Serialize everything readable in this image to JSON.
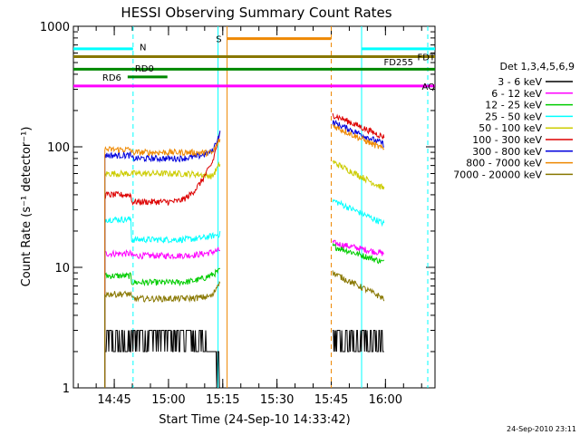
{
  "chart_data": {
    "type": "line",
    "title": "HESSI Observing Summary Count Rates",
    "xlabel": "Start Time (24-Sep-10 14:33:42)",
    "ylabel": "Count Rate (s⁻¹ detector⁻¹)",
    "yscale": "log",
    "ylim": [
      1,
      1000
    ],
    "xlim_minutes": [
      0,
      100
    ],
    "y_ticks": [
      "1",
      "10",
      "100",
      "1000"
    ],
    "x_ticks": [
      {
        "label": "14:45",
        "min": 11.3
      },
      {
        "label": "15:00",
        "min": 26.3
      },
      {
        "label": "15:15",
        "min": 41.3
      },
      {
        "label": "15:30",
        "min": 56.3
      },
      {
        "label": "15:45",
        "min": 71.3
      },
      {
        "label": "16:00",
        "min": 86.3
      }
    ],
    "legend_title": "Det 1,3,4,5,6,9",
    "legend_placement": "right",
    "series": [
      {
        "name": "3 - 6 keV",
        "color": "#000000",
        "seg1": [
          2.3,
          2.7,
          1.7
        ],
        "seg2": [
          2.6,
          2.2
        ]
      },
      {
        "name": "6 - 12 keV",
        "color": "#ff00ff",
        "seg1": [
          13,
          12.5,
          14
        ],
        "seg2": [
          16,
          13
        ]
      },
      {
        "name": "12 - 25 keV",
        "color": "#00cc00",
        "seg1": [
          8.5,
          7.5,
          9.5
        ],
        "seg2": [
          15,
          11
        ]
      },
      {
        "name": "25 - 50 keV",
        "color": "#00ffff",
        "seg1": [
          25,
          17,
          19
        ],
        "seg2": [
          36,
          23
        ]
      },
      {
        "name": "50 - 100 keV",
        "color": "#cccc00",
        "seg1": [
          60,
          60,
          55
        ],
        "seg2": [
          75,
          45
        ]
      },
      {
        "name": "100 - 300 keV",
        "color": "#dd0000",
        "seg1": [
          40,
          35,
          100
        ],
        "seg2": [
          185,
          120
        ]
      },
      {
        "name": "300 - 800 keV",
        "color": "#0000dd",
        "seg1": [
          85,
          80,
          100
        ],
        "seg2": [
          160,
          105
        ]
      },
      {
        "name": "800 - 7000 keV",
        "color": "#ee8800",
        "seg1": [
          95,
          90,
          88
        ],
        "seg2": [
          150,
          95
        ]
      },
      {
        "name": "7000 - 20000 keV",
        "color": "#887700",
        "seg1": [
          6,
          5.5,
          6
        ],
        "seg2": [
          9,
          5.5
        ]
      }
    ],
    "flag_bars": [
      {
        "label": "N",
        "color": "#00ffff",
        "y": 650,
        "segments": [
          [
            0,
            16.5
          ],
          [
            79.7,
            100
          ]
        ]
      },
      {
        "label": "S",
        "color": "#ee8800",
        "y": 790,
        "segments": [
          [
            42.5,
            71.3
          ]
        ]
      },
      {
        "label": "FDT",
        "color": "#887700",
        "y": 560,
        "segments": [
          [
            0,
            100
          ]
        ]
      },
      {
        "label": "FD255",
        "color": "#887700",
        "y": 560,
        "segments": []
      },
      {
        "label": "RD0",
        "color": "#008800",
        "y": 440,
        "segments": [
          [
            0,
            100
          ]
        ]
      },
      {
        "label": "RD6",
        "color": "#008800",
        "y": 380,
        "segments": [
          [
            15,
            26
          ]
        ]
      },
      {
        "label": "AQ",
        "color": "#ff00ff",
        "y": 320,
        "segments": [
          [
            0,
            100
          ]
        ]
      }
    ],
    "vertical_lines": [
      {
        "min": 16.5,
        "color": "#00ffff",
        "style": "dashed"
      },
      {
        "min": 40.0,
        "color": "#00ffff",
        "style": "solid"
      },
      {
        "min": 42.5,
        "color": "#ee8800",
        "style": "solid"
      },
      {
        "min": 71.3,
        "color": "#ee8800",
        "style": "dashed"
      },
      {
        "min": 79.7,
        "color": "#00ffff",
        "style": "solid"
      },
      {
        "min": 98.0,
        "color": "#00ffff",
        "style": "dashed"
      }
    ],
    "grid": false
  },
  "footer": {
    "timestamp": "24-Sep-2010 23:11"
  }
}
